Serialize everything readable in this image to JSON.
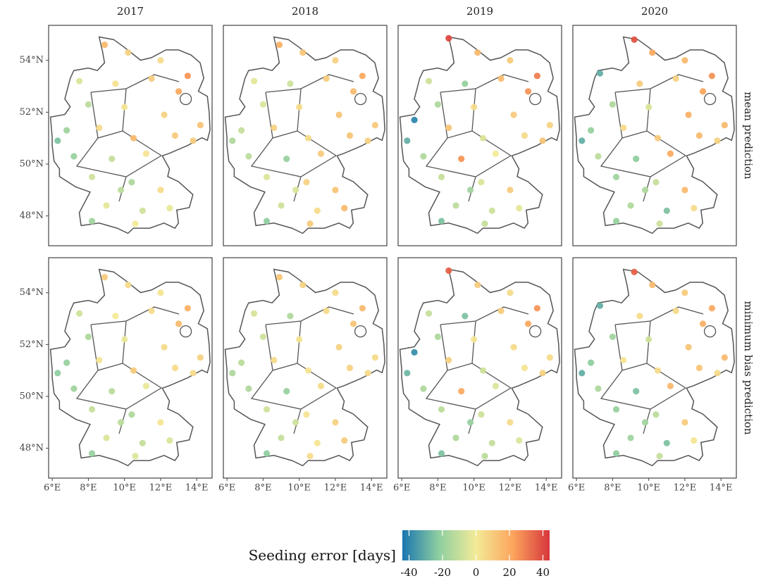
{
  "chart_data": {
    "type": "scatter",
    "facet_cols": [
      "2017",
      "2018",
      "2019",
      "2020"
    ],
    "facet_rows": [
      "mean prediction",
      "minimum bias prediction"
    ],
    "xlim": [
      5.8,
      14.85
    ],
    "ylim": [
      46.85,
      55.35
    ],
    "xticks": [
      {
        "value": 6,
        "label": "6°E"
      },
      {
        "value": 8,
        "label": "8°E"
      },
      {
        "value": 10,
        "label": "10°E"
      },
      {
        "value": 12,
        "label": "12°E"
      },
      {
        "value": 14,
        "label": "14°E"
      }
    ],
    "yticks": [
      {
        "value": 48,
        "label": "48°N"
      },
      {
        "value": 50,
        "label": "50°N"
      },
      {
        "value": 52,
        "label": "52°N"
      },
      {
        "value": 54,
        "label": "54°N"
      }
    ],
    "colorbar_title": "Seeding error [days]",
    "clim": [
      -44,
      44
    ],
    "colorbar_ticks": [
      -40,
      -20,
      0,
      20,
      40
    ],
    "colormap": [
      "#1a76b0",
      "#8fcfa0",
      "#f3eb98",
      "#fca55d",
      "#d7363c"
    ],
    "panels": [
      [
        {
          "x": [
            8.9,
            10.2,
            12.0,
            13.5,
            7.5,
            9.5,
            11.5,
            13.0,
            8.0,
            10.0,
            12.2,
            14.2,
            6.8,
            8.6,
            10.5,
            12.8,
            7.2,
            9.3,
            11.2,
            8.2,
            10.4,
            12.0,
            9.0,
            11.0,
            12.5,
            8.2,
            10.6,
            6.3,
            13.8,
            9.8
          ],
          "y": [
            54.6,
            54.3,
            54.0,
            53.4,
            53.2,
            53.1,
            53.3,
            52.8,
            52.3,
            52.2,
            51.9,
            51.5,
            51.3,
            51.4,
            51.0,
            51.1,
            50.3,
            50.2,
            50.4,
            49.5,
            49.3,
            49.0,
            48.4,
            48.2,
            48.3,
            47.8,
            47.7,
            50.9,
            50.9,
            49.0
          ],
          "values": [
            15,
            8,
            5,
            25,
            -5,
            3,
            10,
            20,
            -12,
            2,
            8,
            12,
            -18,
            5,
            15,
            10,
            -20,
            -10,
            2,
            -8,
            -15,
            5,
            -3,
            -8,
            -2,
            -18,
            0,
            -25,
            10,
            -12
          ]
        },
        {
          "x": [
            8.9,
            10.2,
            12.0,
            13.5,
            7.5,
            9.5,
            11.5,
            13.0,
            8.0,
            10.0,
            12.2,
            14.2,
            6.8,
            8.6,
            10.5,
            12.8,
            7.2,
            9.3,
            11.2,
            8.2,
            10.4,
            12.0,
            9.0,
            11.0,
            12.5,
            8.2,
            10.6,
            6.3,
            13.8,
            9.8
          ],
          "y": [
            54.6,
            54.3,
            54.0,
            53.4,
            53.2,
            53.1,
            53.3,
            52.8,
            52.3,
            52.2,
            51.9,
            51.5,
            51.3,
            51.4,
            51.0,
            51.1,
            50.3,
            50.2,
            50.4,
            49.5,
            49.3,
            49.0,
            48.4,
            48.2,
            48.3,
            47.8,
            47.7,
            50.9,
            50.9,
            49.0
          ],
          "values": [
            18,
            12,
            8,
            20,
            -3,
            -8,
            10,
            15,
            -5,
            5,
            12,
            10,
            -10,
            8,
            5,
            12,
            -12,
            -20,
            10,
            -5,
            8,
            12,
            -8,
            5,
            15,
            -22,
            10,
            -15,
            8,
            -5
          ]
        },
        {
          "x": [
            8.6,
            10.2,
            12.0,
            13.5,
            7.5,
            9.5,
            11.5,
            13.0,
            8.0,
            10.0,
            12.2,
            14.2,
            6.7,
            8.6,
            10.5,
            12.8,
            7.2,
            9.3,
            11.2,
            8.2,
            10.4,
            12.0,
            9.0,
            11.0,
            12.5,
            8.2,
            10.6,
            6.3,
            13.8,
            9.8
          ],
          "y": [
            54.85,
            54.3,
            54.0,
            53.4,
            53.2,
            53.1,
            53.3,
            52.8,
            52.3,
            52.2,
            51.9,
            51.5,
            51.7,
            51.4,
            51.0,
            51.1,
            50.3,
            50.2,
            50.4,
            49.5,
            49.3,
            49.0,
            48.4,
            48.2,
            48.3,
            47.8,
            47.7,
            50.9,
            50.9,
            49.0
          ],
          "values": [
            40,
            15,
            10,
            30,
            -8,
            -20,
            15,
            25,
            -15,
            5,
            10,
            8,
            -40,
            12,
            -5,
            5,
            -15,
            25,
            0,
            -10,
            -5,
            10,
            -12,
            -8,
            -3,
            -25,
            -10,
            -30,
            12,
            -18
          ]
        },
        {
          "x": [
            9.2,
            10.2,
            12.0,
            13.5,
            7.3,
            9.5,
            11.5,
            13.0,
            8.0,
            10.0,
            12.2,
            14.2,
            6.8,
            8.6,
            10.5,
            12.8,
            7.2,
            9.3,
            11.2,
            8.2,
            10.4,
            12.0,
            9.0,
            11.0,
            12.5,
            8.2,
            10.6,
            6.3,
            13.8,
            9.8
          ],
          "y": [
            54.8,
            54.3,
            54.0,
            53.4,
            53.5,
            53.1,
            53.3,
            52.8,
            52.3,
            52.2,
            51.9,
            51.5,
            51.3,
            51.4,
            51.0,
            51.1,
            50.3,
            50.2,
            50.4,
            49.5,
            49.3,
            49.0,
            48.4,
            48.2,
            48.3,
            47.8,
            47.7,
            50.9,
            50.9,
            49.0
          ],
          "values": [
            38,
            20,
            15,
            25,
            -30,
            10,
            8,
            22,
            -15,
            -5,
            18,
            15,
            -20,
            5,
            10,
            15,
            -12,
            -22,
            20,
            -18,
            -10,
            15,
            -15,
            -25,
            5,
            -20,
            -8,
            -30,
            8,
            -15
          ]
        }
      ],
      [
        {
          "x": [
            8.9,
            10.2,
            12.0,
            13.5,
            7.5,
            9.5,
            11.5,
            13.0,
            8.0,
            10.0,
            12.2,
            14.2,
            6.8,
            8.6,
            10.5,
            12.8,
            7.2,
            9.3,
            11.2,
            8.2,
            10.4,
            12.0,
            9.0,
            11.0,
            12.5,
            8.2,
            10.6,
            6.3,
            13.8,
            9.8
          ],
          "y": [
            54.6,
            54.3,
            54.0,
            53.4,
            53.2,
            53.1,
            53.3,
            52.8,
            52.3,
            52.2,
            51.9,
            51.5,
            51.3,
            51.4,
            51.0,
            51.1,
            50.3,
            50.2,
            50.4,
            49.5,
            49.3,
            49.0,
            48.4,
            48.2,
            48.3,
            47.8,
            47.7,
            50.9,
            50.9,
            49.0
          ],
          "values": [
            10,
            5,
            2,
            18,
            -8,
            0,
            5,
            15,
            -15,
            -2,
            5,
            8,
            -20,
            2,
            10,
            5,
            -18,
            -12,
            -2,
            -10,
            -15,
            2,
            -5,
            -10,
            -5,
            -20,
            -5,
            -22,
            5,
            -12
          ]
        },
        {
          "x": [
            8.9,
            10.2,
            12.0,
            13.5,
            7.5,
            9.5,
            11.5,
            13.0,
            8.0,
            10.0,
            12.2,
            14.2,
            6.8,
            8.6,
            10.5,
            12.8,
            7.2,
            9.3,
            11.2,
            8.2,
            10.4,
            12.0,
            9.0,
            11.0,
            12.5,
            8.2,
            10.6,
            6.3,
            13.8,
            9.8
          ],
          "y": [
            54.6,
            54.3,
            54.0,
            53.4,
            53.2,
            53.1,
            53.3,
            52.8,
            52.3,
            52.2,
            51.9,
            51.5,
            51.3,
            51.4,
            51.0,
            51.1,
            50.3,
            50.2,
            50.4,
            49.5,
            49.3,
            49.0,
            48.4,
            48.2,
            48.3,
            47.8,
            47.7,
            50.9,
            50.9,
            49.0
          ],
          "values": [
            12,
            8,
            5,
            15,
            -6,
            -15,
            5,
            12,
            -8,
            2,
            8,
            5,
            -12,
            5,
            2,
            8,
            -15,
            -20,
            5,
            -8,
            2,
            8,
            -10,
            2,
            10,
            -22,
            5,
            -15,
            5,
            -8
          ]
        },
        {
          "x": [
            8.6,
            10.2,
            12.0,
            13.5,
            7.5,
            9.5,
            11.5,
            13.0,
            8.0,
            10.0,
            12.2,
            14.2,
            6.7,
            8.6,
            10.5,
            12.8,
            7.2,
            9.3,
            11.2,
            8.2,
            10.4,
            12.0,
            9.0,
            11.0,
            12.5,
            8.2,
            10.6,
            6.3,
            13.8,
            9.8
          ],
          "y": [
            54.85,
            54.3,
            54.0,
            53.4,
            53.2,
            53.1,
            53.3,
            52.8,
            52.3,
            52.2,
            51.9,
            51.5,
            51.7,
            51.4,
            51.0,
            51.1,
            50.3,
            50.2,
            50.4,
            49.5,
            49.3,
            49.0,
            48.4,
            48.2,
            48.3,
            47.8,
            47.7,
            50.9,
            50.9,
            49.0
          ],
          "values": [
            35,
            10,
            5,
            25,
            -10,
            -25,
            10,
            20,
            -15,
            2,
            5,
            5,
            -38,
            8,
            -8,
            2,
            -15,
            20,
            -5,
            -12,
            -8,
            5,
            -15,
            -10,
            -5,
            -25,
            -12,
            -28,
            8,
            -20
          ]
        },
        {
          "x": [
            9.2,
            10.2,
            12.0,
            13.5,
            7.3,
            9.5,
            11.5,
            13.0,
            8.0,
            10.0,
            12.2,
            14.2,
            6.8,
            8.6,
            10.5,
            12.8,
            7.2,
            9.3,
            11.2,
            8.2,
            10.4,
            12.0,
            9.0,
            11.0,
            12.5,
            8.2,
            10.6,
            6.3,
            13.8,
            9.8
          ],
          "y": [
            54.8,
            54.3,
            54.0,
            53.4,
            53.5,
            53.1,
            53.3,
            52.8,
            52.3,
            52.2,
            51.9,
            51.5,
            51.3,
            51.4,
            51.0,
            51.1,
            50.3,
            50.2,
            50.4,
            49.5,
            49.3,
            49.0,
            48.4,
            48.2,
            48.3,
            47.8,
            47.7,
            50.9,
            50.9,
            49.0
          ],
          "values": [
            35,
            15,
            10,
            20,
            -30,
            5,
            5,
            18,
            -18,
            -8,
            12,
            15,
            -22,
            2,
            5,
            12,
            -15,
            -25,
            15,
            -20,
            -12,
            10,
            -18,
            -25,
            2,
            -22,
            -10,
            -30,
            5,
            -18
          ]
        }
      ]
    ]
  }
}
